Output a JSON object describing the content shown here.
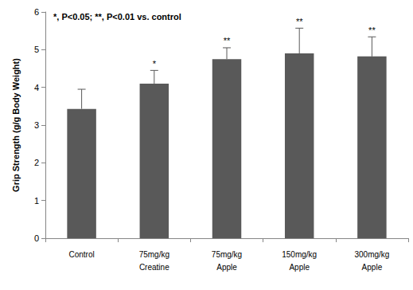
{
  "chart_data": {
    "type": "bar",
    "annotation": "*, P<0.05; **, P<0.01 vs. control",
    "y_label": "Grip Strength (g/g Body Weight)",
    "categories": [
      "Control",
      "75mg/kg\nCreatine",
      "75mg/kg\nApple",
      "150mg/kg\nApple",
      "300mg/kg\nApple"
    ],
    "values": [
      3.43,
      4.1,
      4.75,
      4.9,
      4.82
    ],
    "errors": [
      0.52,
      0.35,
      0.3,
      0.67,
      0.52
    ],
    "significance": [
      null,
      "*",
      "**",
      "**",
      "**"
    ],
    "color": "#595959",
    "ylim": [
      0,
      6
    ],
    "yticks": [
      0,
      1,
      2,
      3,
      4,
      5,
      6
    ],
    "grid": false
  }
}
